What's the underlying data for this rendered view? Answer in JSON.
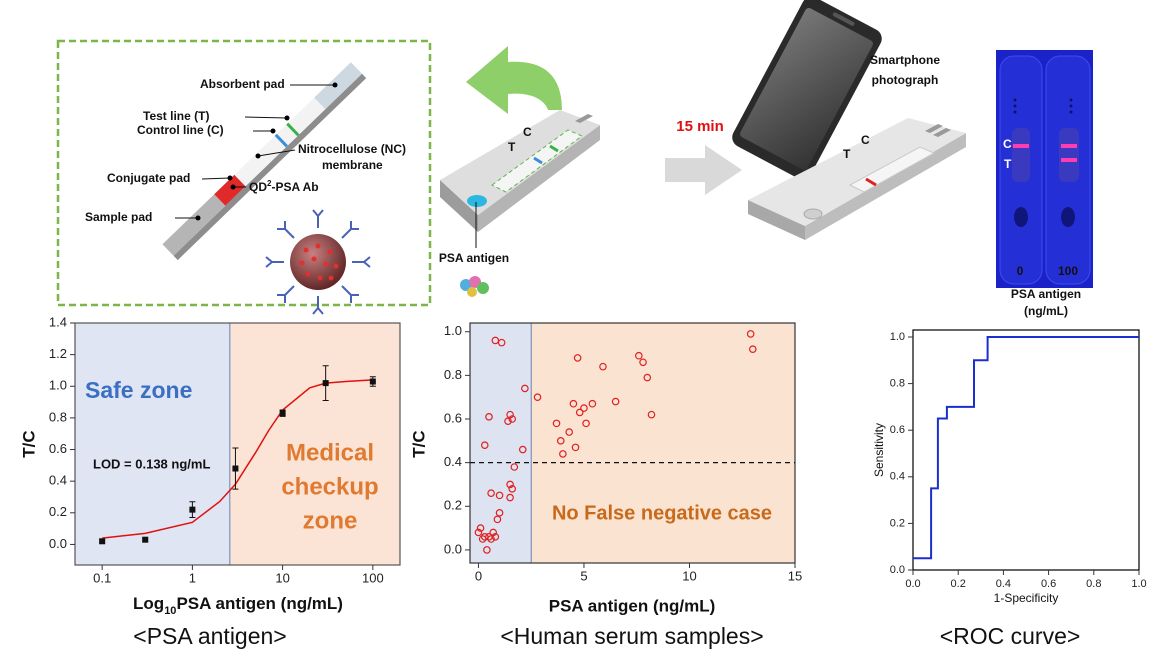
{
  "diagram": {
    "absorbent_pad": "Absorbent pad",
    "test_line": "Test line (T)",
    "control_line": "Control line (C)",
    "nc_membrane": [
      "Nitrocellulose (NC)",
      "membrane"
    ],
    "conjugate_pad": "Conjugate pad",
    "qd_ab": [
      "QD",
      "2",
      "-PSA Ab"
    ],
    "sample_pad": "Sample pad",
    "cassette1": {
      "t": "T",
      "c": "C",
      "antigen": "PSA antigen"
    },
    "time": "15 min",
    "smartphone": [
      "Smartphone",
      "photograph"
    ],
    "cassette2": {
      "t": "T",
      "c": "C"
    },
    "photo": {
      "c": "C",
      "t": "T",
      "levels": [
        "0",
        "100"
      ],
      "axis": [
        "PSA antigen",
        "(ng/mL)"
      ]
    }
  },
  "chart_data": [
    {
      "type": "scatter",
      "xscale": "log",
      "xlim": [
        0.05,
        200
      ],
      "ylim": [
        -0.13,
        1.4
      ],
      "xticks": [
        0.1,
        1,
        10,
        100
      ],
      "yticks": [
        {
          "value": 0,
          "label": "0.0"
        },
        0.2,
        0.4,
        0.6,
        0.8,
        {
          "value": 1,
          "label": "1.0"
        },
        1.2,
        1.4
      ],
      "xlabel": [
        "Log",
        "10",
        "PSA antigen (ng/mL)"
      ],
      "ylabel": "T/C",
      "caption": "<PSA antigen>",
      "zone_split": 2.6,
      "zone_colors": [
        "#dfe5f2",
        "#fbe4d5"
      ],
      "annotations": {
        "safe": "Safe zone",
        "medical": [
          "Medical",
          "checkup",
          "zone"
        ],
        "lod": "LOD = 0.138 ng/mL"
      },
      "series": [
        {
          "style": "line",
          "color": "#e01010",
          "x": [
            0.1,
            0.3,
            1,
            2,
            3,
            5,
            7,
            10,
            20,
            30,
            50,
            100
          ],
          "values": [
            0.04,
            0.07,
            0.14,
            0.27,
            0.38,
            0.58,
            0.72,
            0.85,
            0.99,
            1.02,
            1.03,
            1.04
          ]
        },
        {
          "style": "square",
          "color": "#111111",
          "x": [
            0.1,
            0.3,
            1,
            3,
            10,
            30,
            100
          ],
          "values": [
            0.02,
            0.03,
            0.22,
            0.48,
            0.83,
            1.02,
            1.03
          ],
          "errors": [
            0.01,
            0.01,
            0.05,
            0.13,
            0.02,
            0.11,
            0.03
          ]
        }
      ]
    },
    {
      "type": "scatter",
      "xlim": [
        -0.4,
        15
      ],
      "ylim": [
        -0.06,
        1.04
      ],
      "xticks": [
        0,
        5,
        10,
        15
      ],
      "yticks": [
        {
          "value": 0,
          "label": "0.0"
        },
        0.2,
        0.4,
        0.6,
        0.8,
        {
          "value": 1,
          "label": "1.0"
        }
      ],
      "xlabel": "PSA antigen (ng/mL)",
      "ylabel": "T/C",
      "caption": "<Human serum samples>",
      "zone_split": 2.5,
      "zone_colors": [
        "#dde3f0",
        "#fbe3d2"
      ],
      "threshold": 0.4,
      "annotation": "No False negative case",
      "series": [
        {
          "style": "circle",
          "color": "#e02020",
          "x": [
            0.0,
            0.1,
            0.2,
            0.3,
            0.4,
            0.5,
            0.6,
            0.7,
            0.8,
            0.9,
            1.0,
            0.6,
            1.0,
            1.5,
            1.5,
            1.6,
            1.7,
            0.3,
            0.5,
            1.4,
            1.6,
            1.5,
            0.8,
            1.1,
            2.2,
            2.1,
            2.8,
            3.7,
            3.9,
            4.0,
            4.3,
            4.5,
            4.6,
            4.7,
            4.8,
            5.0,
            5.1,
            5.4,
            5.9,
            6.5,
            7.6,
            7.8,
            8.0,
            8.2,
            12.9,
            13.0
          ],
          "values": [
            0.08,
            0.1,
            0.05,
            0.06,
            0.0,
            0.06,
            0.05,
            0.08,
            0.06,
            0.14,
            0.17,
            0.26,
            0.25,
            0.24,
            0.3,
            0.28,
            0.38,
            0.48,
            0.61,
            0.59,
            0.6,
            0.62,
            0.96,
            0.95,
            0.74,
            0.46,
            0.7,
            0.58,
            0.5,
            0.44,
            0.54,
            0.67,
            0.47,
            0.88,
            0.63,
            0.65,
            0.58,
            0.67,
            0.84,
            0.68,
            0.89,
            0.86,
            0.79,
            0.62,
            0.99,
            0.92
          ]
        }
      ]
    },
    {
      "type": "line",
      "xlim": [
        0,
        1
      ],
      "ylim": [
        0,
        1.03
      ],
      "xticks": [
        {
          "value": 0,
          "label": "0.0"
        },
        0.2,
        0.4,
        0.6,
        0.8,
        {
          "value": 1,
          "label": "1.0"
        }
      ],
      "yticks": [
        {
          "value": 0,
          "label": "0.0"
        },
        0.2,
        0.4,
        0.6,
        0.8,
        {
          "value": 1,
          "label": "1.0"
        }
      ],
      "xlabel": "1-Specificity",
      "ylabel": "Sensitivity",
      "caption": "<ROC curve>",
      "series": [
        {
          "style": "line",
          "color": "#1a2fd0",
          "x": [
            0,
            0.08,
            0.08,
            0.11,
            0.11,
            0.15,
            0.15,
            0.27,
            0.27,
            0.33,
            0.33,
            1
          ],
          "values": [
            0.05,
            0.05,
            0.35,
            0.35,
            0.65,
            0.65,
            0.7,
            0.7,
            0.9,
            0.9,
            1.0,
            1.0
          ]
        }
      ]
    }
  ]
}
